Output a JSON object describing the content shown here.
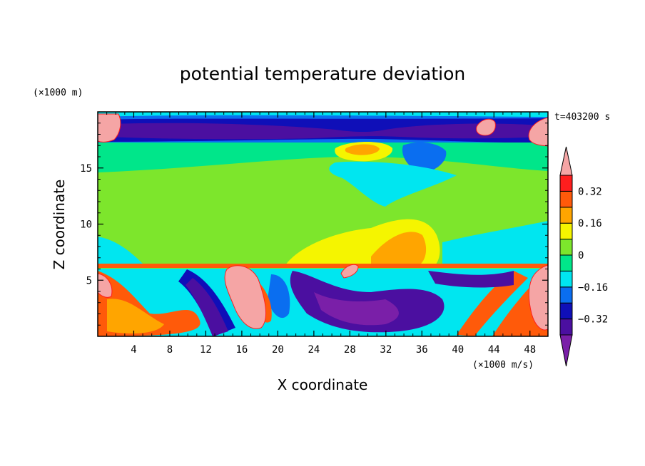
{
  "chart_data": {
    "type": "heatmap",
    "title": "potential temperature deviation",
    "xlabel": "X coordinate",
    "ylabel": "Z coordinate",
    "x_unit": "(×1000 m/s)",
    "y_unit": "(×1000 m)",
    "time_label": "t=403200 s",
    "xlim": [
      0,
      50
    ],
    "ylim": [
      0,
      20
    ],
    "x_ticks": [
      4,
      8,
      12,
      16,
      20,
      24,
      28,
      32,
      36,
      40,
      44,
      48
    ],
    "y_ticks": [
      5,
      10,
      15
    ],
    "colorbar": {
      "levels": [
        -0.4,
        -0.32,
        -0.24,
        -0.16,
        -0.08,
        0,
        0.08,
        0.16,
        0.24,
        0.32,
        0.4
      ],
      "labeled_levels": [
        "0.32",
        "0.16",
        "0",
        "−0.16",
        "−0.32"
      ],
      "labeled_values": [
        0.32,
        0.16,
        0,
        -0.16,
        -0.32
      ],
      "colors": [
        "#7a1fa8",
        "#4b0fa0",
        "#0f0fb8",
        "#0a6ef0",
        "#00e6f0",
        "#00e68a",
        "#7de62c",
        "#f5f500",
        "#ffa500",
        "#ff5a0a",
        "#ff1e1e",
        "#f5a5a5"
      ],
      "extend": "both"
    },
    "regions": {
      "upper_layer": {
        "z_range": [
          17,
          19.5
        ],
        "dominant": "−0.32 to −0.4"
      },
      "mid_layer": {
        "z_range": [
          6.2,
          17
        ],
        "dominant": "0 to 0.08"
      },
      "lower_layer": {
        "z_range": [
          0,
          6.2
        ],
        "dominant": "mixed, −0.4 to >0.4"
      }
    }
  }
}
